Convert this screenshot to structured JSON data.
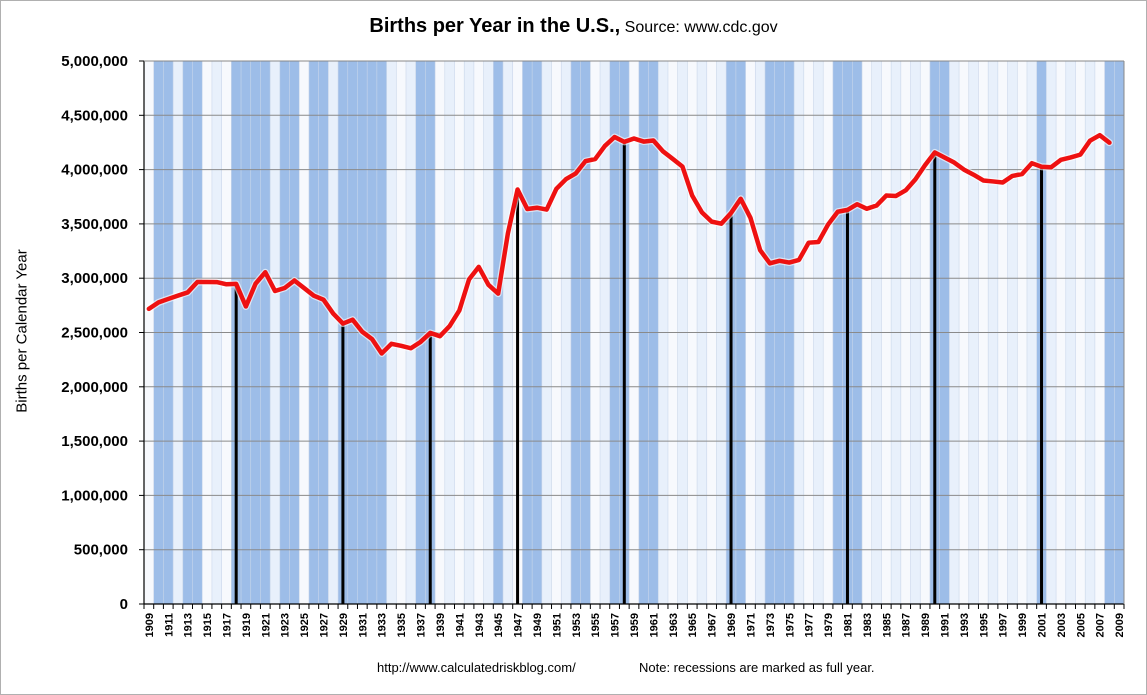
{
  "chart_data": {
    "type": "line",
    "title": "Births per Year in the U.S.,",
    "subtitle": "Source: www.cdc.gov",
    "ylabel": "Births per Calendar Year",
    "xlabel": "",
    "ylim": [
      0,
      5000000
    ],
    "xlim": [
      1909,
      2009
    ],
    "yticks": [
      0,
      500000,
      1000000,
      1500000,
      2000000,
      2500000,
      3000000,
      3500000,
      4000000,
      4500000,
      5000000
    ],
    "ytick_labels": [
      "0",
      "500,000",
      "1,000,000",
      "1,500,000",
      "2,000,000",
      "2,500,000",
      "3,000,000",
      "3,500,000",
      "4,000,000",
      "4,500,000",
      "5,000,000"
    ],
    "xtick_labels": [
      "1909",
      "1911",
      "1913",
      "1915",
      "1917",
      "1919",
      "1921",
      "1923",
      "1925",
      "1927",
      "1929",
      "1931",
      "1933",
      "1935",
      "1937",
      "1939",
      "1941",
      "1943",
      "1945",
      "1947",
      "1949",
      "1951",
      "1953",
      "1955",
      "1957",
      "1959",
      "1961",
      "1963",
      "1965",
      "1967",
      "1969",
      "1971",
      "1973",
      "1975",
      "1977",
      "1979",
      "1981",
      "1983",
      "1985",
      "1987",
      "1989",
      "1991",
      "1993",
      "1995",
      "1997",
      "1999",
      "2001",
      "2003",
      "2005",
      "2007",
      "2009"
    ],
    "grid": true,
    "series": [
      {
        "name": "Births",
        "color": "#ee1111",
        "years": [
          1909,
          1910,
          1911,
          1912,
          1913,
          1914,
          1915,
          1916,
          1917,
          1918,
          1919,
          1920,
          1921,
          1922,
          1923,
          1924,
          1925,
          1926,
          1927,
          1928,
          1929,
          1930,
          1931,
          1932,
          1933,
          1934,
          1935,
          1936,
          1937,
          1938,
          1939,
          1940,
          1941,
          1942,
          1943,
          1944,
          1945,
          1946,
          1947,
          1948,
          1949,
          1950,
          1951,
          1952,
          1953,
          1954,
          1955,
          1956,
          1957,
          1958,
          1959,
          1960,
          1961,
          1962,
          1963,
          1964,
          1965,
          1966,
          1967,
          1968,
          1969,
          1970,
          1971,
          1972,
          1973,
          1974,
          1975,
          1976,
          1977,
          1978,
          1979,
          1980,
          1981,
          1982,
          1983,
          1984,
          1985,
          1986,
          1987,
          1988,
          1989,
          1990,
          1991,
          1992,
          1993,
          1994,
          1995,
          1996,
          1997,
          1998,
          1999,
          2000,
          2001,
          2002,
          2003,
          2004,
          2005,
          2006,
          2007,
          2008
        ],
        "values": [
          2718000,
          2777000,
          2809000,
          2840000,
          2869000,
          2965000,
          2965000,
          2964000,
          2944000,
          2948000,
          2740000,
          2950000,
          3055000,
          2882000,
          2910000,
          2979000,
          2909000,
          2839000,
          2802000,
          2674000,
          2582000,
          2618000,
          2506000,
          2440000,
          2307000,
          2396000,
          2377000,
          2355000,
          2413000,
          2496000,
          2466000,
          2559000,
          2703000,
          2989000,
          3104000,
          2939000,
          2858000,
          3411000,
          3817000,
          3637000,
          3649000,
          3632000,
          3823000,
          3913000,
          3965000,
          4078000,
          4097000,
          4218000,
          4300000,
          4255000,
          4286000,
          4258000,
          4268000,
          4167000,
          4098000,
          4027000,
          3760000,
          3606000,
          3521000,
          3502000,
          3600000,
          3731000,
          3556000,
          3258000,
          3137000,
          3160000,
          3144000,
          3168000,
          3327000,
          3333000,
          3494000,
          3612000,
          3629000,
          3681000,
          3639000,
          3669000,
          3761000,
          3757000,
          3809000,
          3910000,
          4041000,
          4158000,
          4111000,
          4065000,
          4000000,
          3953000,
          3900000,
          3891000,
          3881000,
          3942000,
          3959000,
          4059000,
          4026000,
          4022000,
          4090000,
          4112000,
          4138000,
          4266000,
          4317000,
          4248000
        ]
      }
    ],
    "recession_years": [
      1910,
      1911,
      1913,
      1914,
      1918,
      1919,
      1920,
      1921,
      1923,
      1924,
      1926,
      1927,
      1929,
      1930,
      1931,
      1932,
      1933,
      1937,
      1938,
      1945,
      1948,
      1949,
      1953,
      1954,
      1957,
      1958,
      1960,
      1961,
      1969,
      1970,
      1973,
      1974,
      1975,
      1980,
      1981,
      1982,
      1990,
      1991,
      2001,
      2008,
      2009
    ],
    "annotation_years": [
      1918,
      1929,
      1938,
      1947,
      1958,
      1969,
      1981,
      1990,
      2001
    ],
    "colors": {
      "recession_band": "#9dbde8",
      "alt_band": "#e8f0fb",
      "plot_bg": "#f7f9fd",
      "grid": "#8a8a8a",
      "line": "#ee1111",
      "marker": "#000000"
    }
  },
  "footer": {
    "url": "http://www.calculatedriskblog.com/",
    "note": "Note:  recessions are marked as full year."
  }
}
